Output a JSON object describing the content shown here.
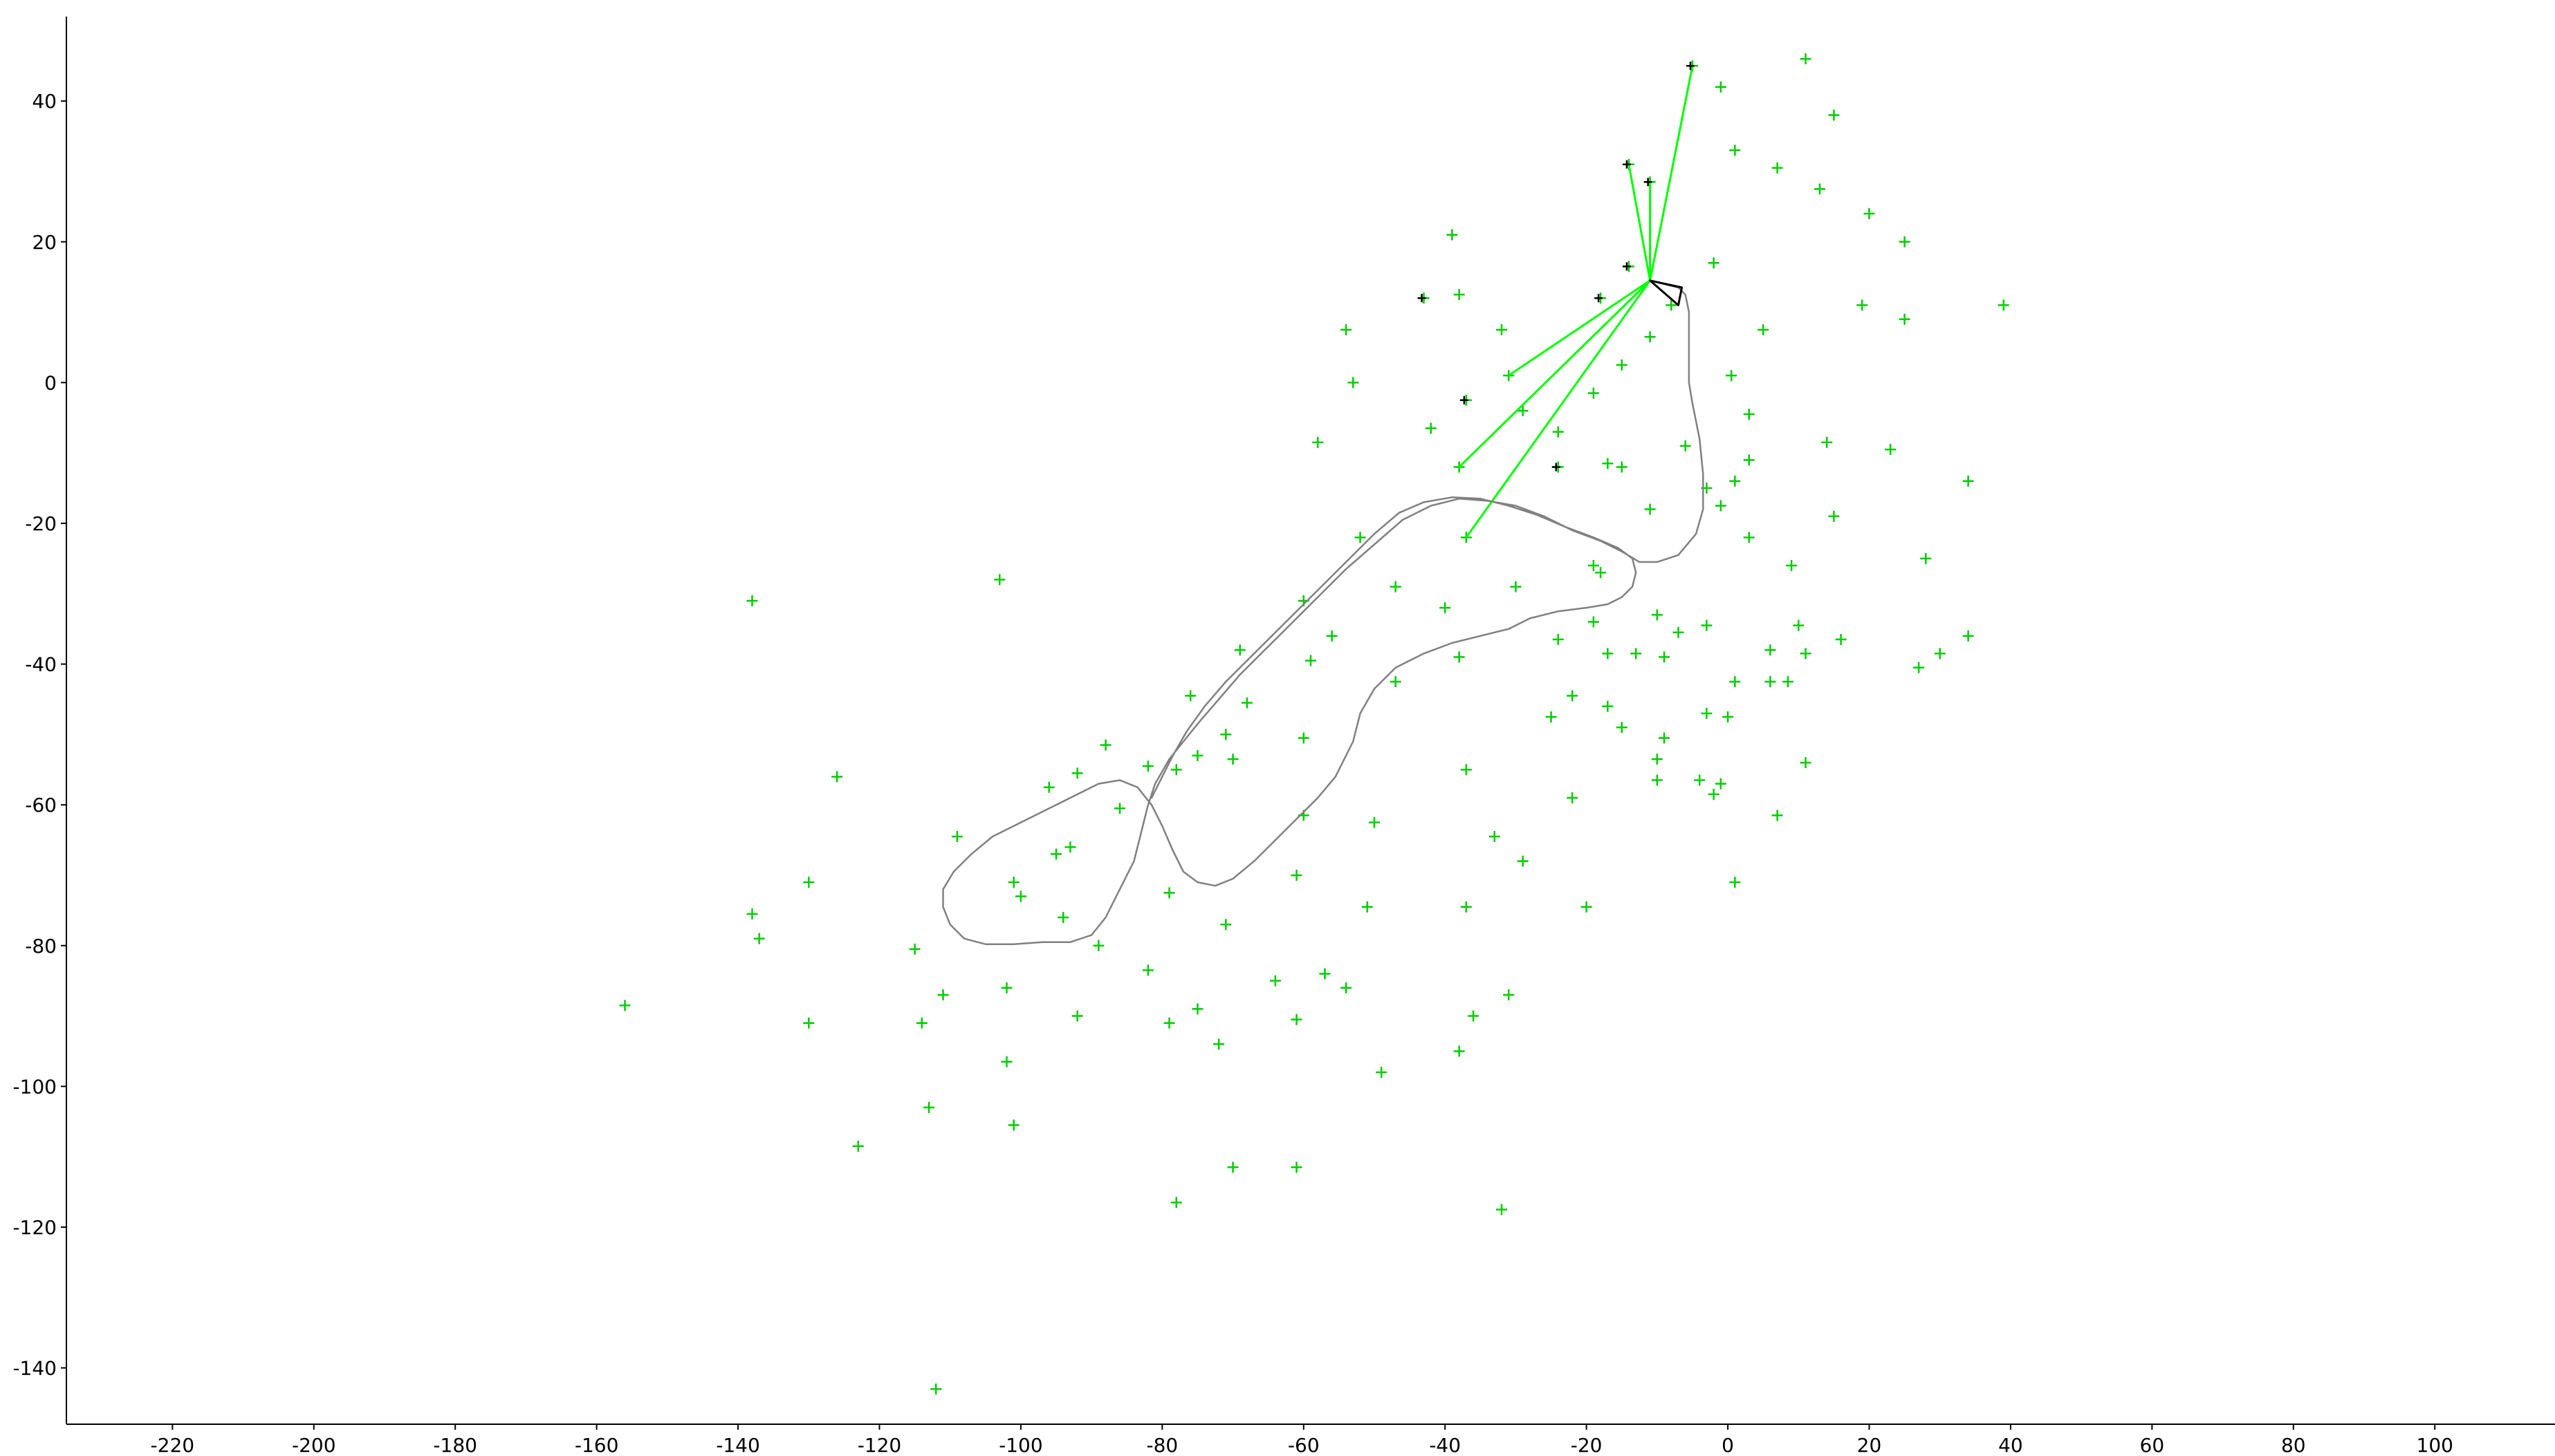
{
  "chart_data": {
    "type": "scatter",
    "title": "",
    "xlabel": "",
    "ylabel": "",
    "xlim": [
      -235,
      117
    ],
    "ylim": [
      -148,
      52
    ],
    "xticks": [
      -220,
      -200,
      -180,
      -160,
      -140,
      -120,
      -100,
      -80,
      -60,
      -40,
      -20,
      0,
      20,
      40,
      60,
      80,
      100
    ],
    "yticks": [
      40,
      20,
      0,
      -20,
      -40,
      -60,
      -80,
      -100,
      -120,
      -140
    ],
    "grid": false,
    "legend": "none",
    "colors": {
      "landmark": "#00cc00",
      "observed": "#000000",
      "ray": "#00ff00",
      "trajectory": "#808080",
      "pose": "#000000"
    },
    "robot_position": [
      -11,
      14.5
    ],
    "robot_heading_polygon": [
      [
        -11,
        14.5
      ],
      [
        -7,
        11
      ],
      [
        -6.5,
        13.5
      ]
    ],
    "landmarks": [
      [
        -5,
        45
      ],
      [
        11,
        46
      ],
      [
        -1,
        42
      ],
      [
        15,
        38
      ],
      [
        1,
        33
      ],
      [
        -14,
        31
      ],
      [
        7,
        30.5
      ],
      [
        -11,
        28.5
      ],
      [
        13,
        27.5
      ],
      [
        -39,
        21
      ],
      [
        20,
        24
      ],
      [
        25,
        20
      ],
      [
        -2,
        17
      ],
      [
        -14,
        16.5
      ],
      [
        -38,
        12.5
      ],
      [
        -43,
        12
      ],
      [
        -18,
        12
      ],
      [
        19,
        11
      ],
      [
        39,
        11
      ],
      [
        25,
        9
      ],
      [
        -8,
        11
      ],
      [
        -32,
        7.5
      ],
      [
        5,
        7.5
      ],
      [
        -54,
        7.5
      ],
      [
        -11,
        6.5
      ],
      [
        -15,
        2.5
      ],
      [
        -31,
        1
      ],
      [
        0.5,
        1
      ],
      [
        -53,
        0
      ],
      [
        -19,
        -1.5
      ],
      [
        -37,
        -2.5
      ],
      [
        -29,
        -4
      ],
      [
        3,
        -4.5
      ],
      [
        -42,
        -6.5
      ],
      [
        -24,
        -7
      ],
      [
        -6,
        -9
      ],
      [
        -58,
        -8.5
      ],
      [
        14,
        -8.5
      ],
      [
        23,
        -9.5
      ],
      [
        -17,
        -11.5
      ],
      [
        -15,
        -12
      ],
      [
        -24,
        -12
      ],
      [
        3,
        -11
      ],
      [
        -38,
        -12
      ],
      [
        34,
        -14
      ],
      [
        1,
        -14
      ],
      [
        -3,
        -15
      ],
      [
        -1,
        -17.5
      ],
      [
        -11,
        -18
      ],
      [
        15,
        -19
      ],
      [
        -37,
        -22
      ],
      [
        -52,
        -22
      ],
      [
        3,
        -22
      ],
      [
        -19,
        -26
      ],
      [
        -18,
        -27
      ],
      [
        9,
        -26
      ],
      [
        28,
        -25
      ],
      [
        -30,
        -29
      ],
      [
        -47,
        -29
      ],
      [
        -103,
        -28
      ],
      [
        -60,
        -31
      ],
      [
        -40,
        -32
      ],
      [
        -138,
        -31
      ],
      [
        -10,
        -33
      ],
      [
        -19,
        -34
      ],
      [
        -3,
        -34.5
      ],
      [
        10,
        -34.5
      ],
      [
        -7,
        -35.5
      ],
      [
        16,
        -36.5
      ],
      [
        34,
        -36
      ],
      [
        -56,
        -36
      ],
      [
        -24,
        -36.5
      ],
      [
        6,
        -38
      ],
      [
        11,
        -38.5
      ],
      [
        30,
        -38.5
      ],
      [
        -69,
        -38
      ],
      [
        -17,
        -38.5
      ],
      [
        -13,
        -38.5
      ],
      [
        -9,
        -39
      ],
      [
        -38,
        -39
      ],
      [
        -59,
        -39.5
      ],
      [
        27,
        -40.5
      ],
      [
        -47,
        -42.5
      ],
      [
        1,
        -42.5
      ],
      [
        6,
        -42.5
      ],
      [
        8.5,
        -42.5
      ],
      [
        -76,
        -44.5
      ],
      [
        -22,
        -44.5
      ],
      [
        -68,
        -45.5
      ],
      [
        -17,
        -46
      ],
      [
        -3,
        -47
      ],
      [
        -25,
        -47.5
      ],
      [
        0,
        -47.5
      ],
      [
        -15,
        -49
      ],
      [
        -71,
        -50
      ],
      [
        -9,
        -50.5
      ],
      [
        -60,
        -50.5
      ],
      [
        -88,
        -51.5
      ],
      [
        -75,
        -53
      ],
      [
        -70,
        -53.5
      ],
      [
        -10,
        -53.5
      ],
      [
        11,
        -54
      ],
      [
        -78,
        -55
      ],
      [
        -82,
        -54.5
      ],
      [
        -92,
        -55.5
      ],
      [
        -37,
        -55
      ],
      [
        -126,
        -56
      ],
      [
        -10,
        -56.5
      ],
      [
        -4,
        -56.5
      ],
      [
        -1,
        -57
      ],
      [
        -96,
        -57.5
      ],
      [
        -2,
        -58.5
      ],
      [
        -22,
        -59
      ],
      [
        -86,
        -60.5
      ],
      [
        -60,
        -61.5
      ],
      [
        7,
        -61.5
      ],
      [
        -50,
        -62.5
      ],
      [
        -109,
        -64.5
      ],
      [
        -33,
        -64.5
      ],
      [
        -93,
        -66
      ],
      [
        -95,
        -67
      ],
      [
        -29,
        -68
      ],
      [
        -61,
        -70
      ],
      [
        -101,
        -71
      ],
      [
        -130,
        -71
      ],
      [
        1,
        -71
      ],
      [
        -100,
        -73
      ],
      [
        -79,
        -72.5
      ],
      [
        -51,
        -74.5
      ],
      [
        -37,
        -74.5
      ],
      [
        -20,
        -74.5
      ],
      [
        -138,
        -75.5
      ],
      [
        -94,
        -76
      ],
      [
        -71,
        -77
      ],
      [
        -137,
        -79
      ],
      [
        -89,
        -80
      ],
      [
        -115,
        -80.5
      ],
      [
        -82,
        -83.5
      ],
      [
        -57,
        -84
      ],
      [
        -64,
        -85
      ],
      [
        -102,
        -86
      ],
      [
        -54,
        -86
      ],
      [
        -111,
        -87
      ],
      [
        -31,
        -87
      ],
      [
        -75,
        -89
      ],
      [
        -92,
        -90
      ],
      [
        -36,
        -90
      ],
      [
        -61,
        -90.5
      ],
      [
        -156,
        -88.5
      ],
      [
        -114,
        -91
      ],
      [
        -130,
        -91
      ],
      [
        -79,
        -91
      ],
      [
        -72,
        -94
      ],
      [
        -38,
        -95
      ],
      [
        -102,
        -96.5
      ],
      [
        -49,
        -98
      ],
      [
        -113,
        -103
      ],
      [
        -101,
        -105.5
      ],
      [
        -123,
        -108.5
      ],
      [
        -70,
        -111.5
      ],
      [
        -61,
        -111.5
      ],
      [
        -78,
        -116.5
      ],
      [
        -32,
        -117.5
      ],
      [
        -112,
        -143
      ]
    ],
    "observed_landmarks": [
      [
        -5,
        45
      ],
      [
        -14,
        31
      ],
      [
        -11,
        28.5
      ],
      [
        -14,
        16.5
      ],
      [
        -43,
        12
      ],
      [
        -18,
        12
      ],
      [
        -37,
        -2.5
      ],
      [
        -24,
        -12
      ]
    ],
    "observation_rays_to": [
      [
        -5,
        45
      ],
      [
        -14,
        31
      ],
      [
        -11,
        28.5
      ],
      [
        -31,
        1
      ],
      [
        -38,
        -12
      ],
      [
        -37,
        -22
      ]
    ],
    "trajectory": [
      [
        -11,
        14.5
      ],
      [
        -9,
        14
      ],
      [
        -7,
        13.5
      ],
      [
        -6,
        12.5
      ],
      [
        -5.5,
        10
      ],
      [
        -5.5,
        5
      ],
      [
        -5.5,
        0
      ],
      [
        -5,
        -3
      ],
      [
        -4,
        -8
      ],
      [
        -3.5,
        -13
      ],
      [
        -3.5,
        -18
      ],
      [
        -4.5,
        -21.5
      ],
      [
        -7,
        -24.5
      ],
      [
        -10,
        -25.5
      ],
      [
        -12.5,
        -25.5
      ],
      [
        -15,
        -24
      ],
      [
        -18,
        -22.5
      ],
      [
        -22,
        -21
      ],
      [
        -26,
        -19
      ],
      [
        -30,
        -17.5
      ],
      [
        -34,
        -16.8
      ],
      [
        -38,
        -16.5
      ],
      [
        -42,
        -17.5
      ],
      [
        -46,
        -19.5
      ],
      [
        -50,
        -23
      ],
      [
        -54,
        -26.5
      ],
      [
        -58,
        -30.5
      ],
      [
        -62,
        -34.5
      ],
      [
        -66,
        -38.5
      ],
      [
        -69,
        -41.5
      ],
      [
        -72,
        -45
      ],
      [
        -75,
        -48.5
      ],
      [
        -77,
        -51
      ],
      [
        -79,
        -53.5
      ],
      [
        -81,
        -57
      ],
      [
        -82,
        -60
      ],
      [
        -83,
        -64
      ],
      [
        -84,
        -68
      ],
      [
        -86,
        -72
      ],
      [
        -88,
        -76
      ],
      [
        -90,
        -78.5
      ],
      [
        -93,
        -79.5
      ],
      [
        -97,
        -79.5
      ],
      [
        -101,
        -79.8
      ],
      [
        -105,
        -79.8
      ],
      [
        -108,
        -79
      ],
      [
        -110,
        -77
      ],
      [
        -111,
        -74.5
      ],
      [
        -111,
        -72
      ],
      [
        -109.5,
        -69.5
      ],
      [
        -107,
        -67
      ],
      [
        -104,
        -64.5
      ],
      [
        -100,
        -62.5
      ],
      [
        -96,
        -60.5
      ],
      [
        -92,
        -58.5
      ],
      [
        -89,
        -57
      ],
      [
        -86,
        -56.5
      ],
      [
        -83.5,
        -57.5
      ],
      [
        -81.5,
        -60
      ],
      [
        -80,
        -63
      ],
      [
        -78.5,
        -66.5
      ],
      [
        -77,
        -69.5
      ],
      [
        -75,
        -71
      ],
      [
        -72.5,
        -71.5
      ],
      [
        -70,
        -70.5
      ],
      [
        -67,
        -68
      ],
      [
        -64,
        -65
      ],
      [
        -61,
        -62
      ],
      [
        -58,
        -59
      ],
      [
        -55.5,
        -56
      ],
      [
        -53,
        -51
      ],
      [
        -52,
        -47
      ],
      [
        -50,
        -43.5
      ],
      [
        -47,
        -40.5
      ],
      [
        -43,
        -38.5
      ],
      [
        -39,
        -37
      ],
      [
        -35,
        -36
      ],
      [
        -31,
        -35
      ],
      [
        -28,
        -33.5
      ],
      [
        -24,
        -32.5
      ],
      [
        -20,
        -32
      ],
      [
        -17,
        -31.5
      ],
      [
        -15,
        -30.5
      ],
      [
        -13.5,
        -29
      ],
      [
        -13,
        -27
      ],
      [
        -13.5,
        -25
      ],
      [
        -15.5,
        -23.5
      ],
      [
        -19,
        -22
      ],
      [
        -23,
        -20.5
      ],
      [
        -27,
        -18.8
      ],
      [
        -31,
        -17.5
      ],
      [
        -35,
        -16.5
      ],
      [
        -39,
        -16.3
      ],
      [
        -43,
        -17
      ],
      [
        -46.5,
        -18.5
      ],
      [
        -50,
        -21.5
      ],
      [
        -53,
        -24.5
      ],
      [
        -56,
        -27.5
      ],
      [
        -60,
        -31.5
      ],
      [
        -64,
        -35.5
      ],
      [
        -68,
        -39.5
      ],
      [
        -71,
        -42.5
      ],
      [
        -74,
        -46
      ],
      [
        -76.5,
        -49.5
      ],
      [
        -78.5,
        -53
      ],
      [
        -80,
        -56
      ],
      [
        -81.5,
        -59
      ]
    ]
  }
}
